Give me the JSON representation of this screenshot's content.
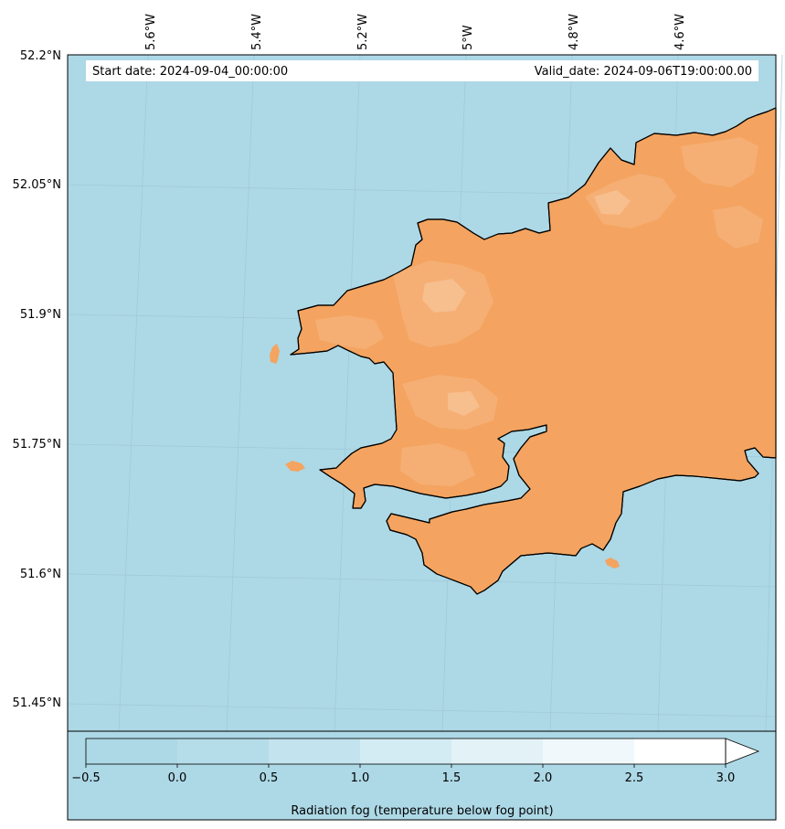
{
  "header": {
    "start_date": "Start date: 2024-09-04_00:00:00",
    "valid_date": "Valid_date: 2024-09-06T19:00:00.00"
  },
  "axes": {
    "lon_labels": [
      "5.6°W",
      "5.4°W",
      "5.2°W",
      "5°W",
      "4.8°W",
      "4.6°W"
    ],
    "lat_labels": [
      "52.2°N",
      "52.05°N",
      "51.9°N",
      "51.75°N",
      "51.6°N",
      "51.45°N"
    ]
  },
  "colors": {
    "sea": "#add8e6",
    "land": "#f4a460",
    "land_light": "#f5b077",
    "land_lighter": "#f7bf8f",
    "coast": "#000000",
    "grid": "#9fc9d8"
  },
  "colorbar": {
    "label": "Radiation fog (temperature below fog point)",
    "ticks": [
      "−0.5",
      "0.0",
      "0.5",
      "1.0",
      "1.5",
      "2.0",
      "2.5",
      "3.0"
    ],
    "tick_values": [
      -0.5,
      0.0,
      0.5,
      1.0,
      1.5,
      2.0,
      2.5,
      3.0
    ],
    "bin_colors": [
      "#add8e6",
      "#b5dce9",
      "#c3e3ee",
      "#d3ebf3",
      "#e2f2f7",
      "#f0f8fb",
      "#ffffff"
    ],
    "extend": "max"
  }
}
